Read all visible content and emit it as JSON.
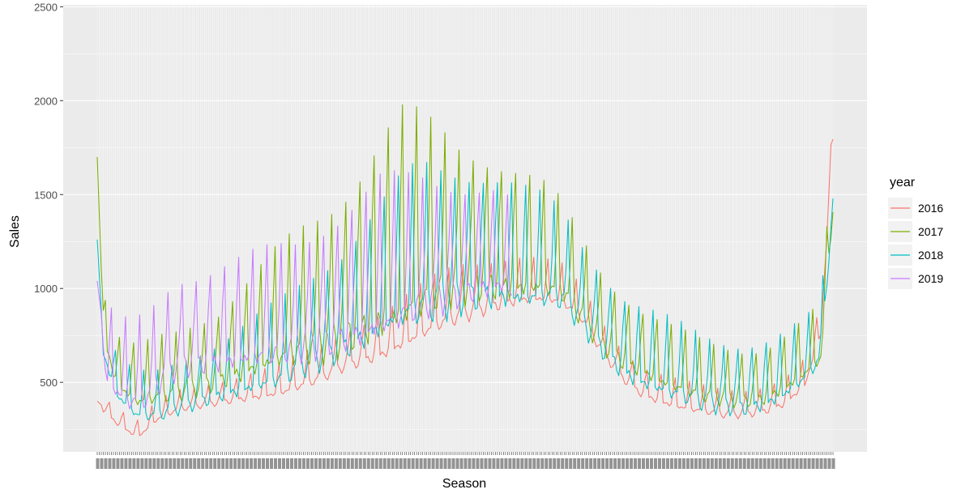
{
  "chart_data": {
    "type": "line",
    "title": "",
    "xlabel": "Season",
    "ylabel": "Sales",
    "ylim": [
      130,
      2510
    ],
    "yticks": [
      500,
      1000,
      1500,
      2000,
      2500
    ],
    "x_count": 365,
    "x_tick_label_note": "365 overlapping day-of-year tick labels (illegible in the original)",
    "legend_title": "year",
    "legend_position": "right",
    "grid": true,
    "panel_background": "#EBEBEB",
    "series": [
      {
        "name": "2016",
        "color": "#F8766D",
        "anchors": [
          [
            0,
            400
          ],
          [
            10,
            300
          ],
          [
            20,
            230
          ],
          [
            30,
            330
          ],
          [
            40,
            380
          ],
          [
            50,
            400
          ],
          [
            60,
            420
          ],
          [
            70,
            440
          ],
          [
            80,
            460
          ],
          [
            90,
            480
          ],
          [
            100,
            520
          ],
          [
            110,
            560
          ],
          [
            120,
            620
          ],
          [
            130,
            660
          ],
          [
            140,
            700
          ],
          [
            150,
            760
          ],
          [
            160,
            820
          ],
          [
            170,
            880
          ],
          [
            180,
            920
          ],
          [
            190,
            950
          ],
          [
            200,
            980
          ],
          [
            210,
            1000
          ],
          [
            220,
            1000
          ],
          [
            230,
            980
          ],
          [
            240,
            880
          ],
          [
            250,
            700
          ],
          [
            260,
            560
          ],
          [
            270,
            470
          ],
          [
            280,
            430
          ],
          [
            290,
            400
          ],
          [
            300,
            380
          ],
          [
            310,
            360
          ],
          [
            320,
            360
          ],
          [
            330,
            380
          ],
          [
            340,
            420
          ],
          [
            350,
            520
          ],
          [
            358,
            800
          ],
          [
            364,
            1820
          ]
        ],
        "weekly_amp": [
          [
            0,
            80
          ],
          [
            60,
            120
          ],
          [
            120,
            200
          ],
          [
            180,
            300
          ],
          [
            240,
            180
          ],
          [
            300,
            140
          ],
          [
            364,
            150
          ]
        ]
      },
      {
        "name": "2017",
        "color": "#7CAE00",
        "anchors": [
          [
            0,
            1700
          ],
          [
            3,
            800
          ],
          [
            10,
            550
          ],
          [
            20,
            470
          ],
          [
            30,
            500
          ],
          [
            40,
            520
          ],
          [
            50,
            560
          ],
          [
            60,
            600
          ],
          [
            70,
            660
          ],
          [
            80,
            720
          ],
          [
            90,
            780
          ],
          [
            100,
            820
          ],
          [
            110,
            860
          ],
          [
            120,
            920
          ],
          [
            130,
            1000
          ],
          [
            140,
            1080
          ],
          [
            150,
            1140
          ],
          [
            160,
            1180
          ],
          [
            170,
            1200
          ],
          [
            180,
            1200
          ],
          [
            190,
            1200
          ],
          [
            200,
            1180
          ],
          [
            210,
            1160
          ],
          [
            220,
            1150
          ],
          [
            230,
            1100
          ],
          [
            240,
            950
          ],
          [
            250,
            800
          ],
          [
            260,
            700
          ],
          [
            270,
            640
          ],
          [
            280,
            580
          ],
          [
            290,
            540
          ],
          [
            300,
            500
          ],
          [
            310,
            480
          ],
          [
            320,
            470
          ],
          [
            330,
            480
          ],
          [
            340,
            540
          ],
          [
            350,
            620
          ],
          [
            358,
            700
          ],
          [
            364,
            1500
          ]
        ],
        "weekly_amp": [
          [
            0,
            250
          ],
          [
            60,
            400
          ],
          [
            120,
            800
          ],
          [
            150,
            1100
          ],
          [
            180,
            800
          ],
          [
            230,
            500
          ],
          [
            270,
            330
          ],
          [
            330,
            280
          ],
          [
            364,
            300
          ]
        ]
      },
      {
        "name": "2018",
        "color": "#00BFC4",
        "anchors": [
          [
            0,
            1260
          ],
          [
            3,
            700
          ],
          [
            10,
            480
          ],
          [
            20,
            380
          ],
          [
            30,
            380
          ],
          [
            40,
            420
          ],
          [
            50,
            460
          ],
          [
            60,
            500
          ],
          [
            70,
            540
          ],
          [
            80,
            580
          ],
          [
            90,
            620
          ],
          [
            100,
            680
          ],
          [
            110,
            740
          ],
          [
            120,
            800
          ],
          [
            130,
            880
          ],
          [
            140,
            960
          ],
          [
            150,
            1040
          ],
          [
            160,
            1080
          ],
          [
            170,
            1100
          ],
          [
            180,
            1120
          ],
          [
            190,
            1130
          ],
          [
            200,
            1120
          ],
          [
            210,
            1100
          ],
          [
            220,
            1090
          ],
          [
            230,
            1060
          ],
          [
            240,
            920
          ],
          [
            250,
            780
          ],
          [
            260,
            660
          ],
          [
            270,
            600
          ],
          [
            280,
            560
          ],
          [
            290,
            520
          ],
          [
            300,
            480
          ],
          [
            310,
            460
          ],
          [
            320,
            450
          ],
          [
            330,
            470
          ],
          [
            340,
            520
          ],
          [
            350,
            600
          ],
          [
            358,
            700
          ],
          [
            364,
            1520
          ]
        ],
        "weekly_amp": [
          [
            0,
            200
          ],
          [
            60,
            300
          ],
          [
            120,
            550
          ],
          [
            160,
            800
          ],
          [
            200,
            650
          ],
          [
            240,
            450
          ],
          [
            280,
            400
          ],
          [
            330,
            350
          ],
          [
            364,
            300
          ]
        ]
      },
      {
        "name": "2019",
        "color": "#C77CFF",
        "anchors": [
          [
            0,
            1040
          ],
          [
            5,
            600
          ],
          [
            15,
            500
          ],
          [
            25,
            520
          ],
          [
            30,
            600
          ],
          [
            40,
            700
          ],
          [
            50,
            720
          ],
          [
            60,
            740
          ],
          [
            70,
            760
          ],
          [
            80,
            780
          ],
          [
            90,
            800
          ],
          [
            100,
            820
          ],
          [
            110,
            860
          ],
          [
            120,
            900
          ],
          [
            130,
            950
          ],
          [
            140,
            1000
          ],
          [
            150,
            1040
          ],
          [
            160,
            1080
          ],
          [
            170,
            1100
          ],
          [
            180,
            1120
          ],
          [
            190,
            1140
          ],
          [
            200,
            1150
          ],
          [
            205,
            1100
          ]
        ],
        "weekly_amp": [
          [
            0,
            400
          ],
          [
            40,
            500
          ],
          [
            100,
            600
          ],
          [
            140,
            800
          ],
          [
            205,
            500
          ]
        ]
      }
    ]
  }
}
